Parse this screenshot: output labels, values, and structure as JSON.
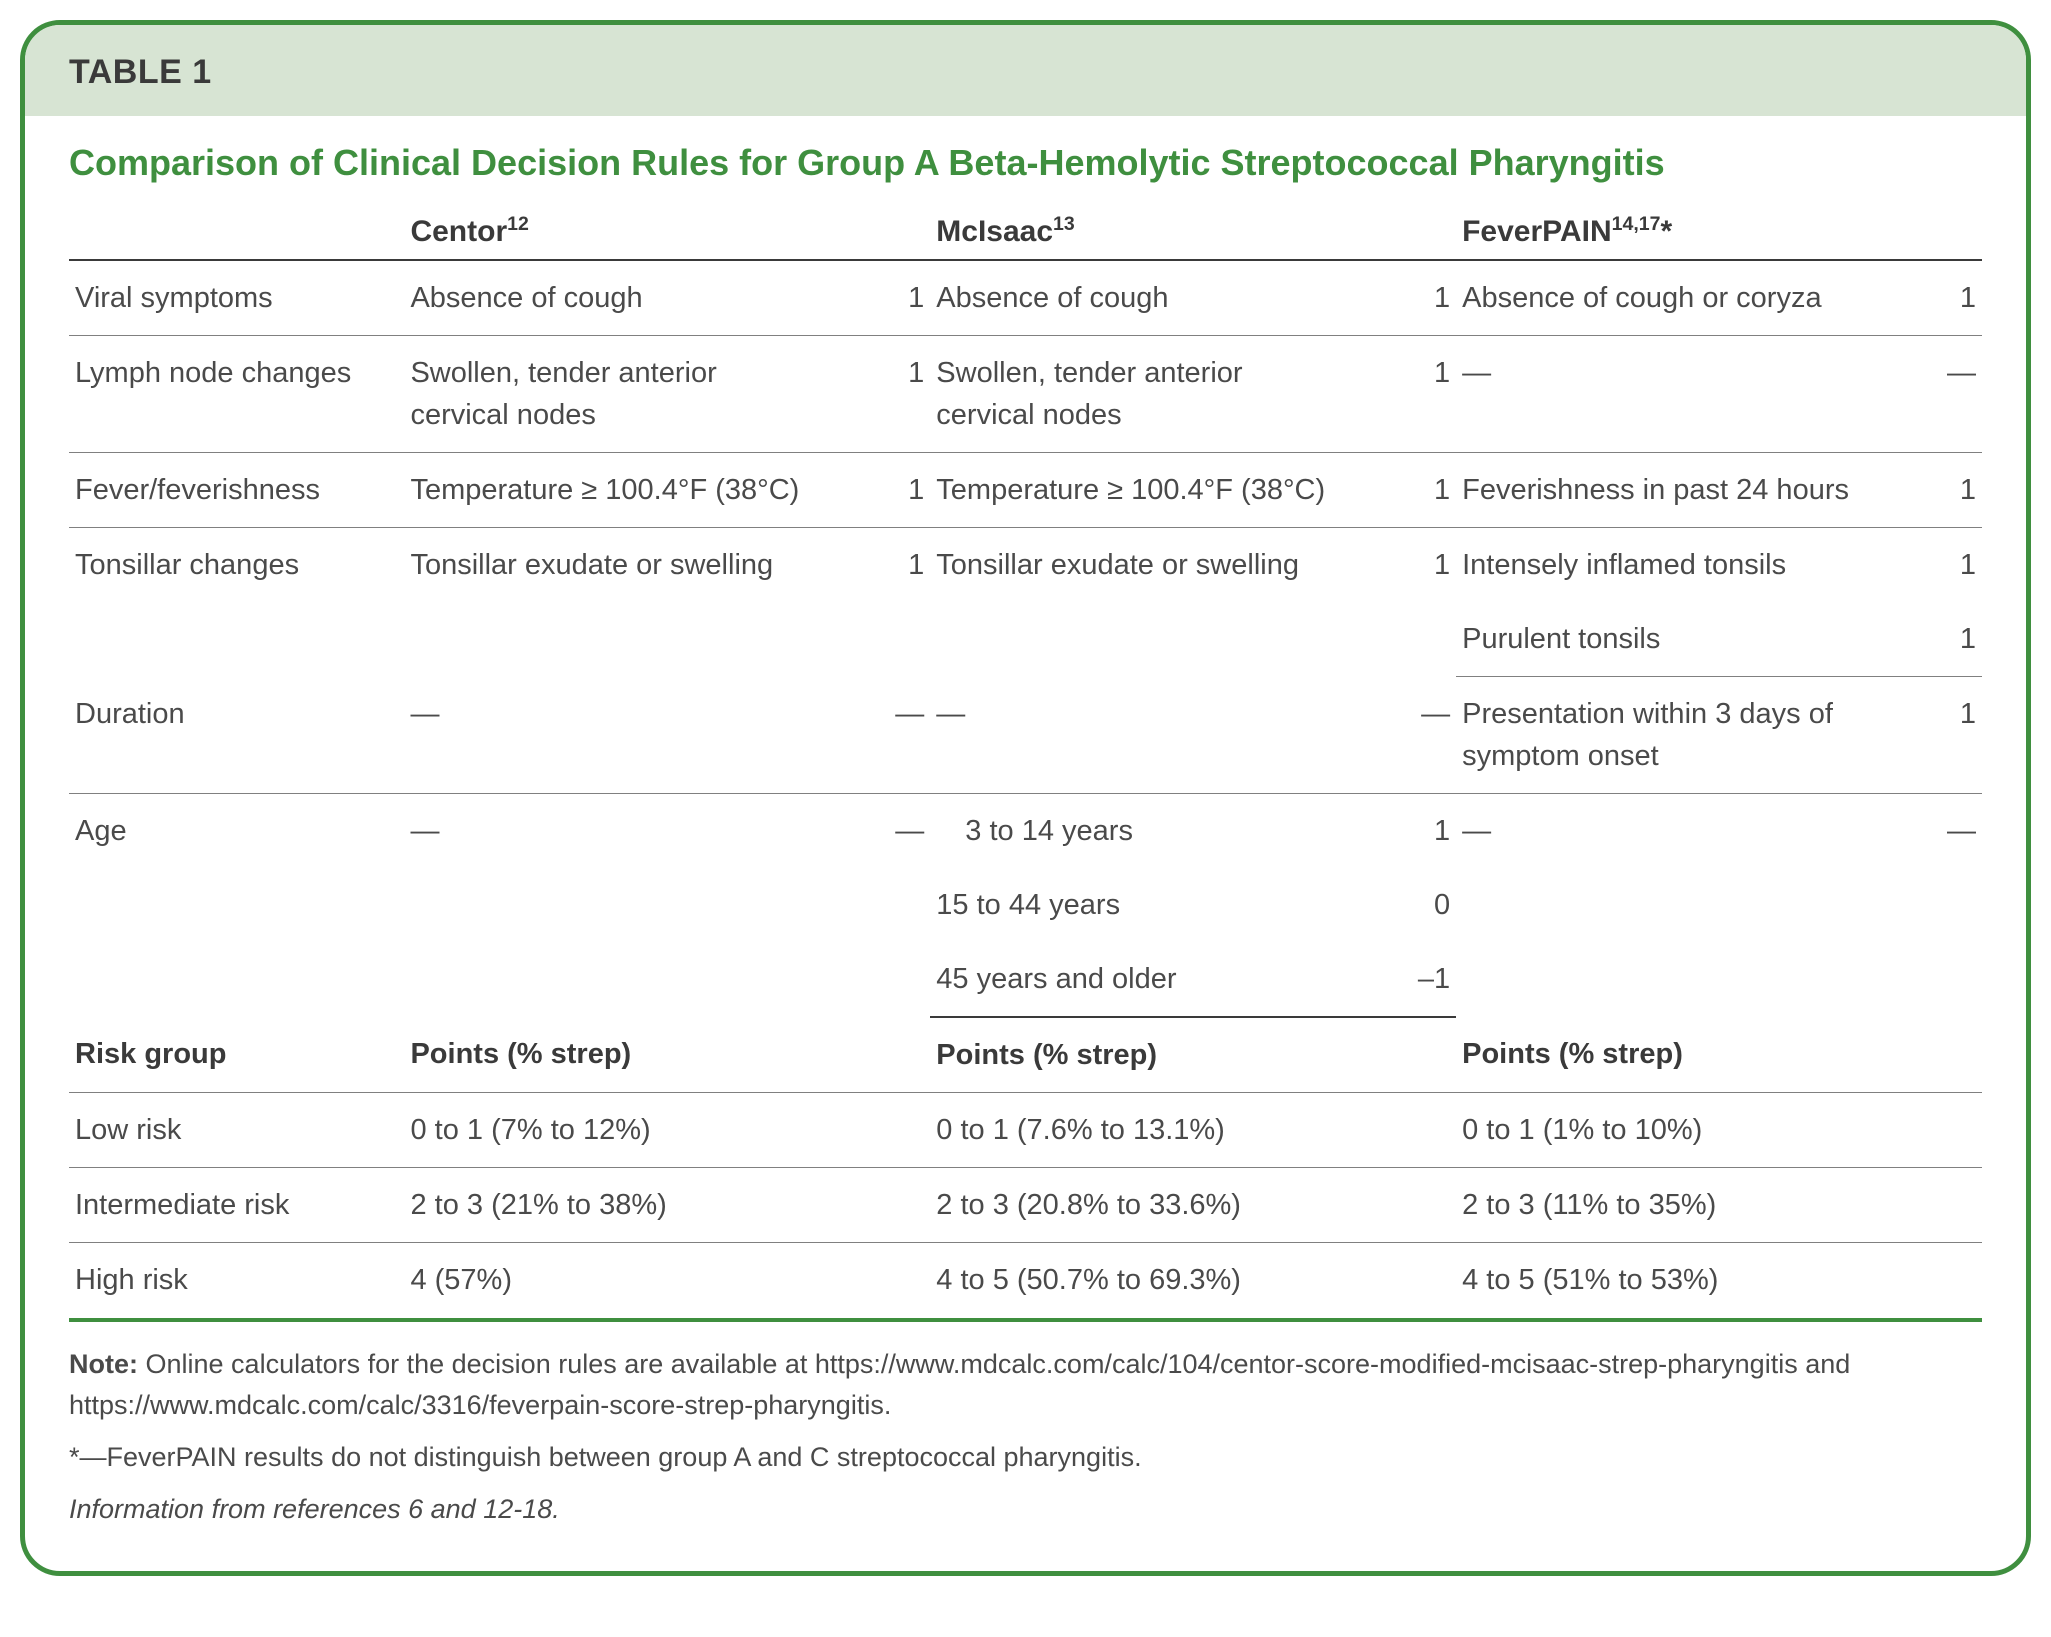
{
  "colors": {
    "border": "#3f8f3f",
    "header_bg": "#d7e4d3",
    "title": "#3f8f3f",
    "text": "#4a4a4a",
    "rule": "#808080",
    "heavy_rule": "#3a3a3a"
  },
  "header": {
    "label": "TABLE 1"
  },
  "title": "Comparison of Clinical Decision Rules for Group A Beta-Hemolytic Streptococcal Pharyngitis",
  "columns": {
    "c1": {
      "name": "Centor",
      "sup": "12"
    },
    "c2": {
      "name": "McIsaac",
      "sup": "13"
    },
    "c3": {
      "name": "FeverPAIN",
      "sup": "14,17",
      "suffix": "*"
    }
  },
  "rows": {
    "r1": {
      "label": "Viral symptoms",
      "c1_desc": "Absence of cough",
      "c1_pts": "1",
      "c2_desc": "Absence of cough",
      "c2_pts": "1",
      "c3_desc": "Absence of cough or coryza",
      "c3_pts": "1"
    },
    "r2": {
      "label": "Lymph node changes",
      "c1_desc": "Swollen, tender anterior cervical nodes",
      "c1_pts": "1",
      "c2_desc": "Swollen, tender anterior cervical nodes",
      "c2_pts": "1",
      "c3_desc": "—",
      "c3_pts": "—"
    },
    "r3": {
      "label": "Fever/feverishness",
      "c1_desc": "Temperature ≥ 100.4°F (38°C)",
      "c1_pts": "1",
      "c2_desc": "Temperature ≥ 100.4°F (38°C)",
      "c2_pts": "1",
      "c3_desc": "Feverishness in past 24 hours",
      "c3_pts": "1"
    },
    "r4": {
      "label": "Tonsillar changes",
      "c1_desc": "Tonsillar exudate or swelling",
      "c1_pts": "1",
      "c2_desc": "Tonsillar exudate or swelling",
      "c2_pts": "1",
      "c3a_desc": "Intensely inflamed tonsils",
      "c3a_pts": "1",
      "c3b_desc": "Purulent tonsils",
      "c3b_pts": "1"
    },
    "r5": {
      "label": "Duration",
      "c1_desc": "—",
      "c1_pts": "—",
      "c2_desc": "—",
      "c2_pts": "—",
      "c3_desc": "Presentation within 3 days of symptom onset",
      "c3_pts": "1"
    },
    "r6": {
      "label": "Age",
      "c1_desc": "—",
      "c1_pts": "—",
      "c2a_desc": "  3 to 14 years",
      "c2a_pts": "1",
      "c2b_desc": "15 to 44 years",
      "c2b_pts": "0",
      "c2c_desc": "45 years and older",
      "c2c_pts": "–1",
      "c3_desc": "—",
      "c3_pts": "—"
    }
  },
  "risk_header": {
    "label": "Risk group",
    "col": "Points (% strep)"
  },
  "risk": {
    "low": {
      "label": "Low risk",
      "c1": "0 to 1 (7% to 12%)",
      "c2": "0 to 1 (7.6% to 13.1%)",
      "c3": "0 to 1 (1% to 10%)"
    },
    "mid": {
      "label": "Intermediate risk",
      "c1": "2 to 3 (21% to 38%)",
      "c2": "2 to 3 (20.8% to 33.6%)",
      "c3": "2 to 3 (11% to 35%)"
    },
    "high": {
      "label": "High risk",
      "c1": "4 (57%)",
      "c2": "4 to 5 (50.7% to 69.3%)",
      "c3": "4 to 5 (51% to 53%)"
    }
  },
  "footnotes": {
    "note_label": "Note:",
    "note_text": " Online calculators for the decision rules are available at https://www.mdcalc.com/calc/104/centor-score-modified-mcisaac-strep-pharyngitis and https://www.mdcalc.com/calc/3316/feverpain-score-strep-pharyngitis.",
    "asterisk": "*—FeverPAIN results do not distinguish between group A and C streptococcal pharyngitis.",
    "info": "Information from references 6 and 12-18."
  }
}
